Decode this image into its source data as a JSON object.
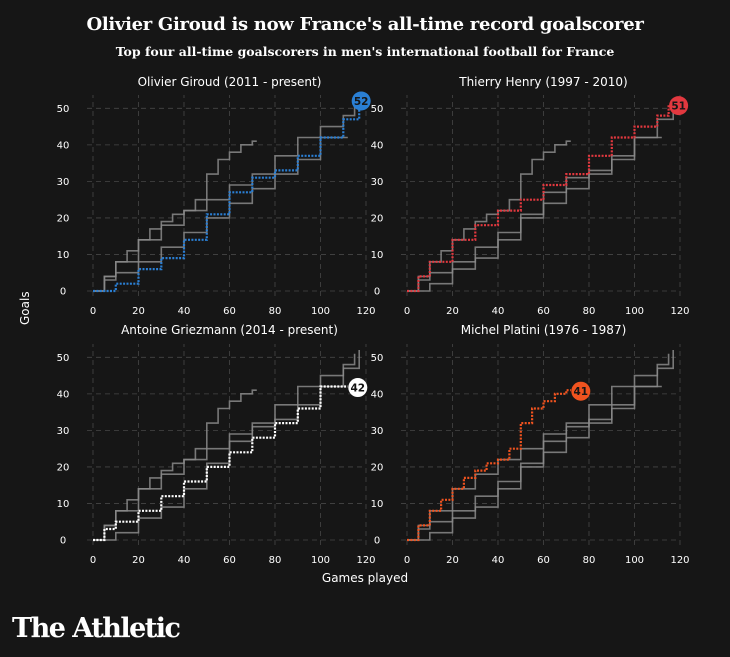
{
  "header": {
    "title": "Olivier Giroud is now France's all-time record goalscorer",
    "subtitle": "Top four all-time goalscorers in men's international football for France"
  },
  "axes": {
    "ylabel": "Goals",
    "xlabel": "Games played"
  },
  "brand": {
    "logo_text": "The Athletic"
  },
  "colors": {
    "background": "#161616",
    "grid": "#474747",
    "others": "#8a8a8a",
    "giroud": "#2a7fd4",
    "henry": "#e2383f",
    "griezmann": "#ffffff",
    "platini": "#f0531f"
  },
  "chart_data": {
    "type": "line",
    "layout": "2x2 small multiples",
    "xlim": [
      0,
      120
    ],
    "ylim": [
      0,
      52
    ],
    "xticks": [
      0,
      20,
      40,
      60,
      80,
      100,
      120
    ],
    "yticks": [
      0,
      10,
      20,
      30,
      40,
      50
    ],
    "grid": true,
    "series": [
      {
        "name": "Olivier Giroud (2011 - present)",
        "short": "giroud",
        "color": "#2a7fd4",
        "final_goals": 52,
        "x": [
          0,
          10,
          20,
          30,
          40,
          50,
          60,
          70,
          80,
          90,
          100,
          110,
          117
        ],
        "y": [
          0,
          2,
          6,
          9,
          14,
          21,
          27,
          31,
          33,
          37,
          42,
          47,
          52
        ]
      },
      {
        "name": "Thierry Henry (1997 - 2010)",
        "short": "henry",
        "color": "#e2383f",
        "final_goals": 51,
        "x": [
          0,
          5,
          10,
          20,
          30,
          40,
          50,
          60,
          70,
          80,
          90,
          100,
          110,
          115
        ],
        "y": [
          0,
          4,
          8,
          14,
          18,
          22,
          25,
          29,
          32,
          37,
          42,
          45,
          48,
          51
        ]
      },
      {
        "name": "Antoine Griezmann (2014 - present)",
        "short": "griezmann",
        "color": "#ffffff",
        "final_goals": 42,
        "x": [
          0,
          5,
          10,
          20,
          30,
          40,
          50,
          60,
          70,
          80,
          90,
          100,
          105,
          112
        ],
        "y": [
          0,
          3,
          5,
          8,
          12,
          16,
          20,
          24,
          28,
          32,
          36,
          42,
          42,
          42
        ]
      },
      {
        "name": "Michel Platini (1976 - 1987)",
        "short": "platini",
        "color": "#f0531f",
        "final_goals": 41,
        "x": [
          0,
          5,
          10,
          15,
          20,
          25,
          30,
          35,
          40,
          45,
          50,
          55,
          60,
          65,
          70,
          72
        ],
        "y": [
          0,
          4,
          8,
          11,
          14,
          17,
          19,
          21,
          22,
          25,
          32,
          36,
          38,
          40,
          41,
          41
        ]
      }
    ]
  }
}
